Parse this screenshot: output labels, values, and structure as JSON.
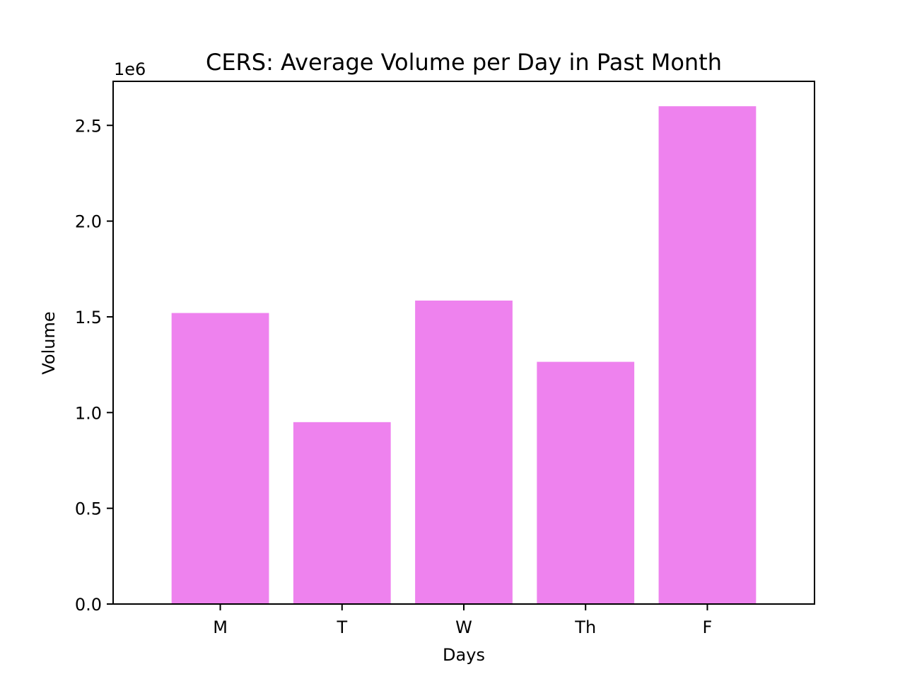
{
  "chart_data": {
    "type": "bar",
    "title": "CERS: Average Volume per Day in Past Month",
    "xlabel": "Days",
    "ylabel": "Volume",
    "y_offset_label": "1e6",
    "categories": [
      "M",
      "T",
      "W",
      "Th",
      "F"
    ],
    "values": [
      1520000,
      950000,
      1585000,
      1265000,
      2600000
    ],
    "ylim": [
      0,
      2730000
    ],
    "yticks": [
      0,
      500000,
      1000000,
      1500000,
      2000000,
      2500000
    ],
    "ytick_labels": [
      "0.0",
      "0.5",
      "1.0",
      "1.5",
      "2.0",
      "2.5"
    ],
    "bar_color": "#EE82EE",
    "grid": false,
    "legend": "none"
  }
}
